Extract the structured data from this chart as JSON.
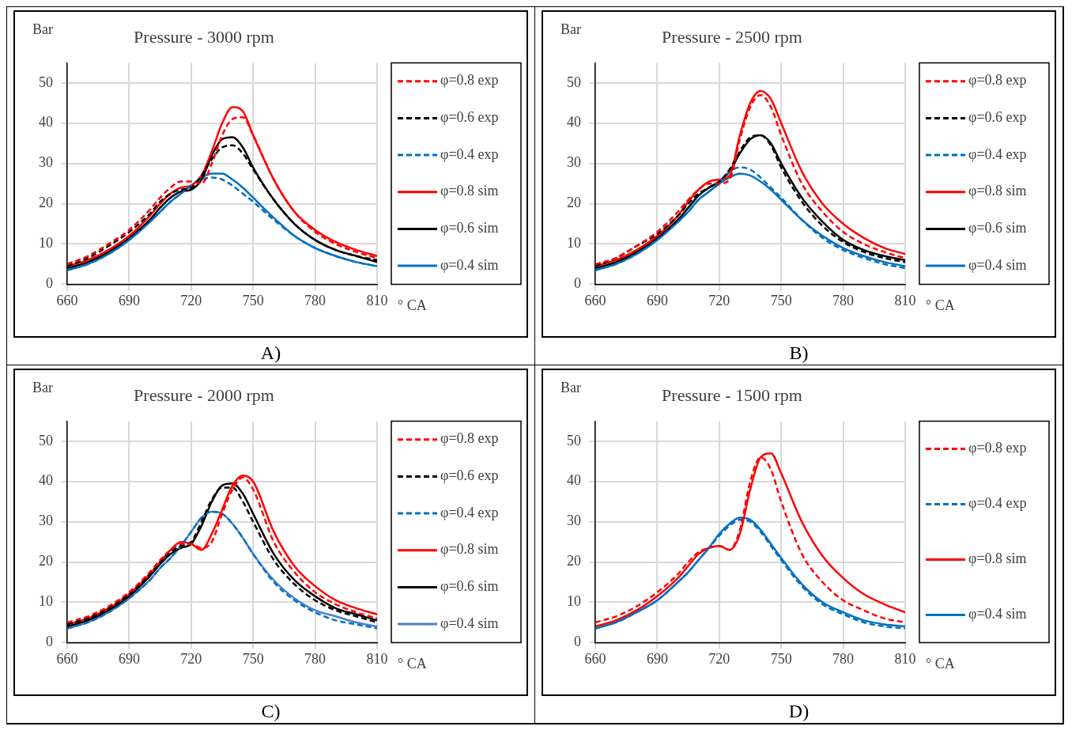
{
  "chart_data": [
    {
      "type": "line",
      "title": "Pressure - 3000 rpm",
      "ylabel": "Bar",
      "xlabel": "° CA",
      "annotations": [
        "A)"
      ],
      "xlim": [
        660,
        810
      ],
      "xticks": [
        660,
        690,
        720,
        750,
        780,
        810
      ],
      "ylim": [
        0,
        55
      ],
      "yticks": [
        0,
        10,
        20,
        30,
        40,
        50
      ],
      "grid": true,
      "legend": "right",
      "marker": "none",
      "x": [
        660,
        670,
        680,
        690,
        700,
        705,
        710,
        715,
        720,
        725,
        730,
        735,
        740,
        745,
        750,
        760,
        770,
        780,
        790,
        800,
        810
      ],
      "series": [
        {
          "name": "φ=0.8 exp",
          "color": "#ff0000",
          "line_style": "dashed",
          "values": [
            5,
            7,
            10,
            13.5,
            18.5,
            21.5,
            24,
            25.5,
            25.5,
            25,
            30,
            37,
            41,
            41.5,
            37,
            26,
            18,
            13,
            10,
            8,
            6.5
          ]
        },
        {
          "name": "φ=0.6 exp",
          "color": "#000000",
          "line_style": "dashed",
          "values": [
            4.5,
            6.5,
            9.5,
            13,
            17.5,
            20.5,
            22.5,
            23.5,
            24,
            27,
            31,
            34,
            34.5,
            32.5,
            28.5,
            21,
            15,
            11,
            8.5,
            7,
            6
          ]
        },
        {
          "name": "φ=0.4 exp",
          "color": "#0070c0",
          "line_style": "dashed",
          "values": [
            3.5,
            5,
            7.5,
            11,
            15.5,
            18,
            20.5,
            22.5,
            24.5,
            26,
            26.5,
            26,
            24.5,
            22.5,
            20.5,
            16,
            12,
            9,
            7,
            5.5,
            4.5
          ]
        },
        {
          "name": "φ=0.8 sim",
          "color": "#ff0000",
          "line_style": "solid",
          "values": [
            4.5,
            6,
            8.5,
            12,
            17,
            20,
            22.5,
            24,
            24.5,
            27,
            33,
            40,
            44,
            43,
            37,
            26,
            18,
            13.5,
            10.5,
            8.5,
            7
          ]
        },
        {
          "name": "φ=0.6 sim",
          "color": "#000000",
          "line_style": "solid",
          "values": [
            4,
            5.5,
            8,
            11.5,
            16,
            19,
            21.5,
            23,
            23.5,
            26,
            32,
            36,
            36.5,
            34,
            29,
            21,
            15,
            11,
            8.5,
            7,
            5.5
          ]
        },
        {
          "name": "φ=0.4 sim",
          "color": "#0070c0",
          "line_style": "solid",
          "values": [
            3.5,
            5,
            7.5,
            11,
            15.5,
            18,
            20.5,
            22.5,
            24.5,
            26.5,
            27.5,
            27.5,
            26,
            24,
            21.5,
            16.5,
            12,
            9,
            7,
            5.5,
            4.5
          ]
        }
      ]
    },
    {
      "type": "line",
      "title": "Pressure - 2500 rpm",
      "ylabel": "Bar",
      "xlabel": "° CA",
      "annotations": [
        "B)"
      ],
      "xlim": [
        660,
        810
      ],
      "xticks": [
        660,
        690,
        720,
        750,
        780,
        810
      ],
      "ylim": [
        0,
        55
      ],
      "yticks": [
        0,
        10,
        20,
        30,
        40,
        50
      ],
      "grid": true,
      "legend": "right",
      "marker": "none",
      "x": [
        660,
        670,
        680,
        690,
        700,
        705,
        710,
        715,
        720,
        725,
        730,
        735,
        740,
        745,
        750,
        760,
        770,
        780,
        790,
        800,
        810
      ],
      "series": [
        {
          "name": "φ=0.8 exp",
          "color": "#ff0000",
          "line_style": "dashed",
          "values": [
            5,
            6.5,
            9.5,
            13,
            18,
            21,
            23.5,
            25,
            25,
            26,
            36,
            44,
            47,
            44,
            37,
            25,
            18,
            13,
            10,
            8,
            6.5
          ]
        },
        {
          "name": "φ=0.6 exp",
          "color": "#000000",
          "line_style": "dashed",
          "values": [
            4.5,
            6.5,
            9.5,
            12.5,
            17,
            20,
            22.5,
            24,
            25.5,
            28.5,
            33,
            36.5,
            37,
            34.5,
            29,
            20.5,
            14.5,
            10.5,
            8,
            6.5,
            5.5
          ]
        },
        {
          "name": "φ=0.4 exp",
          "color": "#0070c0",
          "line_style": "dashed",
          "values": [
            3.5,
            5,
            7.5,
            11,
            15.5,
            18,
            21,
            23,
            25,
            28,
            29,
            28.5,
            26.5,
            24,
            21.5,
            16,
            11.5,
            8.5,
            6.5,
            5,
            4
          ]
        },
        {
          "name": "φ=0.8 sim",
          "color": "#ff0000",
          "line_style": "solid",
          "values": [
            4.5,
            6,
            8.5,
            12,
            17,
            20.5,
            23.5,
            25.5,
            26,
            27,
            37,
            45,
            48,
            46,
            40,
            28,
            20,
            15,
            11.5,
            9,
            7.5
          ]
        },
        {
          "name": "φ=0.6 sim",
          "color": "#000000",
          "line_style": "solid",
          "values": [
            4,
            5.5,
            8,
            11.5,
            16,
            19,
            22,
            24,
            25.5,
            28,
            32.5,
            36,
            37,
            35,
            30,
            21.5,
            15.5,
            11,
            8.5,
            7,
            6
          ]
        },
        {
          "name": "φ=0.4 sim",
          "color": "#0070c0",
          "line_style": "solid",
          "values": [
            3.5,
            5,
            7.5,
            11,
            15.5,
            18,
            21,
            23,
            25,
            26.5,
            27.5,
            27,
            25.5,
            23.5,
            21,
            16,
            12,
            9,
            7,
            5.5,
            4.5
          ]
        }
      ]
    },
    {
      "type": "line",
      "title": "Pressure - 2000 rpm",
      "ylabel": "Bar",
      "xlabel": "° CA",
      "annotations": [
        "C)"
      ],
      "xlim": [
        660,
        810
      ],
      "xticks": [
        660,
        690,
        720,
        750,
        780,
        810
      ],
      "ylim": [
        0,
        55
      ],
      "yticks": [
        0,
        10,
        20,
        30,
        40,
        50
      ],
      "grid": true,
      "legend": "right",
      "marker": "none",
      "x": [
        660,
        670,
        680,
        690,
        700,
        705,
        710,
        715,
        720,
        725,
        730,
        735,
        740,
        745,
        750,
        760,
        770,
        780,
        790,
        800,
        810
      ],
      "series": [
        {
          "name": "φ=0.8 exp",
          "color": "#ff0000",
          "line_style": "dashed",
          "values": [
            5,
            6.5,
            9,
            12.5,
            17.5,
            20.5,
            23,
            24.5,
            24.5,
            23.5,
            25,
            32,
            38,
            41,
            38,
            25,
            17.5,
            12.5,
            9.5,
            7.5,
            6
          ]
        },
        {
          "name": "φ=0.6 exp",
          "color": "#000000",
          "line_style": "dashed",
          "values": [
            4.5,
            6,
            8.5,
            12,
            17,
            20,
            22.5,
            24,
            25,
            30,
            35.5,
            38.5,
            38.5,
            35,
            30,
            20.5,
            14.5,
            10.5,
            8,
            6.5,
            5
          ]
        },
        {
          "name": "φ=0.4 exp",
          "color": "#0070c0",
          "line_style": "dashed",
          "values": [
            3.5,
            5,
            7.5,
            11,
            15.5,
            18.5,
            21,
            24,
            27.5,
            31,
            32.5,
            32,
            29.5,
            26,
            22,
            15,
            10.5,
            7.5,
            5.5,
            4.5,
            3.5
          ]
        },
        {
          "name": "φ=0.8 sim",
          "color": "#ff0000",
          "line_style": "solid",
          "values": [
            4.5,
            6,
            8.5,
            12,
            17,
            20,
            23,
            25,
            24.5,
            23,
            27,
            33,
            39,
            41.5,
            40,
            27.5,
            19,
            14,
            10.5,
            8.5,
            7
          ]
        },
        {
          "name": "φ=0.6 sim",
          "color": "#000000",
          "line_style": "solid",
          "values": [
            4,
            5.5,
            8,
            11.5,
            16.5,
            19.5,
            22,
            23.5,
            24.5,
            29,
            35,
            39,
            39.5,
            37,
            32,
            22,
            15.5,
            11.5,
            8.5,
            7,
            5.5
          ]
        },
        {
          "name": "φ=0.4 sim",
          "color": "#4a7fcb",
          "line_style": "solid",
          "values": [
            3.5,
            5,
            7.5,
            11,
            15.5,
            18.5,
            21,
            24,
            27.5,
            31,
            32.5,
            32,
            29.5,
            26,
            22,
            15.5,
            11,
            8,
            6.5,
            5,
            4
          ]
        }
      ]
    },
    {
      "type": "line",
      "title": "Pressure - 1500 rpm",
      "ylabel": "Bar",
      "xlabel": "° CA",
      "annotations": [
        "D)"
      ],
      "xlim": [
        660,
        810
      ],
      "xticks": [
        660,
        690,
        720,
        750,
        780,
        810
      ],
      "ylim": [
        0,
        55
      ],
      "yticks": [
        0,
        10,
        20,
        30,
        40,
        50
      ],
      "grid": true,
      "legend": "right",
      "marker": "none",
      "x": [
        660,
        670,
        680,
        690,
        700,
        705,
        710,
        715,
        720,
        725,
        730,
        735,
        740,
        745,
        750,
        760,
        770,
        780,
        790,
        800,
        810
      ],
      "series": [
        {
          "name": "φ=0.8 exp",
          "color": "#ff0000",
          "line_style": "dashed",
          "values": [
            5,
            6.5,
            9,
            12.5,
            17,
            20,
            22.5,
            23.5,
            24,
            23,
            28,
            40,
            46,
            43,
            35,
            22,
            15,
            10.5,
            8,
            6,
            5
          ]
        },
        {
          "name": "φ=0.4 exp",
          "color": "#0070c0",
          "line_style": "dashed",
          "values": [
            3.5,
            5,
            7.5,
            10.5,
            15,
            17.5,
            20.5,
            23.5,
            26.5,
            29,
            30.5,
            30,
            27.5,
            24,
            20.5,
            14,
            9.5,
            7,
            5,
            4,
            3.5
          ]
        },
        {
          "name": "φ=0.8 sim",
          "color": "#ff0000",
          "line_style": "solid",
          "values": [
            4,
            5.5,
            8,
            11.5,
            16,
            19,
            22,
            23.5,
            24,
            23,
            27,
            38,
            46,
            47,
            42,
            30,
            21.5,
            16,
            12,
            9.5,
            7.5
          ]
        },
        {
          "name": "φ=0.4 sim",
          "color": "#0070c0",
          "line_style": "solid",
          "values": [
            3.5,
            5,
            7.5,
            10.5,
            15,
            17.5,
            20.5,
            23.5,
            27,
            29.5,
            31,
            30.5,
            28,
            24.5,
            21,
            14.5,
            10,
            7.5,
            5.5,
            4.5,
            4
          ]
        }
      ]
    }
  ]
}
